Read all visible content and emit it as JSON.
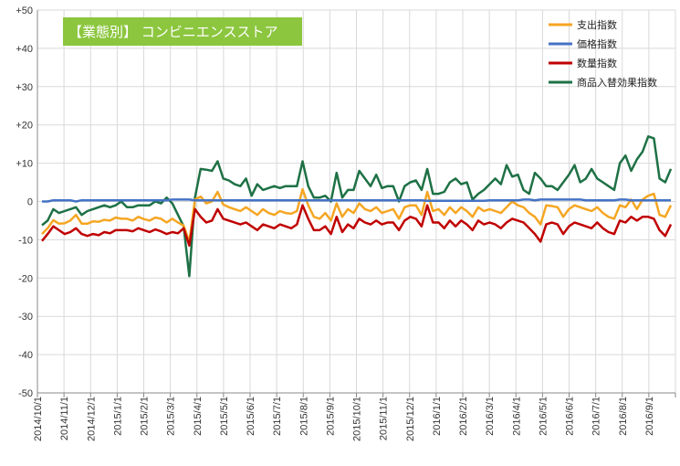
{
  "chart_data": {
    "type": "line",
    "title": "【業態別】 コンビニエンスストア",
    "title_bg_color": "#8CC63F",
    "ylim": [
      -50,
      50
    ],
    "yticks": [
      "+50",
      "+40",
      "+30",
      "+20",
      "+10",
      "0",
      "-10",
      "-20",
      "-30",
      "-40",
      "-50"
    ],
    "xticks": [
      "2014/10/1",
      "2014/11/1",
      "2014/12/1",
      "2015/1/1",
      "2015/2/1",
      "2015/3/1",
      "2015/4/1",
      "2015/5/1",
      "2015/6/1",
      "2015/7/1",
      "2015/8/1",
      "2015/9/1",
      "2015/10/1",
      "2015/11/1",
      "2015/12/1",
      "2016/1/1",
      "2016/2/1",
      "2016/3/1",
      "2016/4/1",
      "2016/5/1",
      "2016/6/1",
      "2016/7/1",
      "2016/8/1",
      "2016/9/1"
    ],
    "grid": true,
    "legend_position": "top-right",
    "series": [
      {
        "name": "支出指数",
        "color": "#F5A623",
        "values": [
          -8.5,
          -7,
          -4.9,
          -5.8,
          -5.7,
          -5,
          -3.5,
          -5.8,
          -5.8,
          -5.2,
          -5.3,
          -4.8,
          -5,
          -4.2,
          -4.5,
          -4.5,
          -5,
          -4,
          -4.6,
          -5,
          -4.2,
          -4.5,
          -5.5,
          -4.5,
          -5.5,
          -6.3,
          -10.5,
          0.5,
          1.3,
          -0.5,
          0,
          2.5,
          -0.8,
          -1.5,
          -2,
          -2.5,
          -1.5,
          -2.5,
          -3.5,
          -2,
          -3,
          -3.5,
          -2.5,
          -3,
          -3.2,
          -2.5,
          3.2,
          -1,
          -4,
          -4.5,
          -3,
          -5,
          -0.5,
          -4,
          -2,
          -3,
          -0.5,
          -2,
          -2.5,
          -1.5,
          -3,
          -2.5,
          -2,
          -4.5,
          -1.5,
          -1,
          -1,
          -3.5,
          2.5,
          -2.5,
          -2,
          -3.5,
          -1.5,
          -3,
          -1.5,
          -2.5,
          -4,
          -1.5,
          -2.5,
          -2,
          -2.5,
          -3,
          -1.5,
          0,
          -1,
          -1.5,
          -3,
          -4,
          -6,
          -1,
          -1.2,
          -1.5,
          -4,
          -2,
          -1,
          -1.5,
          -2,
          -2.5,
          -1.5,
          -3,
          -4,
          -4.5,
          -1,
          -1.5,
          0.5,
          -2,
          0.5,
          1.5,
          2,
          -3.5,
          -4,
          -1
        ]
      },
      {
        "name": "価格指数",
        "color": "#4472C4",
        "values": [
          0,
          0,
          0.3,
          0.3,
          0.3,
          0.3,
          0,
          0.3,
          0.3,
          0.3,
          0.3,
          0.3,
          0.3,
          0.3,
          0.3,
          0.3,
          0.3,
          0.3,
          0.3,
          0.3,
          0.3,
          0.3,
          0.3,
          0.5,
          0.5,
          0.5,
          0.5,
          0.3,
          0.3,
          0.3,
          0.3,
          0.3,
          0.3,
          0.3,
          0.3,
          0.3,
          0.3,
          0.3,
          0.3,
          0.3,
          0.3,
          0.3,
          0.3,
          0.3,
          0.3,
          0.3,
          0.3,
          0.3,
          0.3,
          0.3,
          0.3,
          0.3,
          0.3,
          0.3,
          0.3,
          0.3,
          0.3,
          0.3,
          0.3,
          0.3,
          0.3,
          0.3,
          0.3,
          0.3,
          0.3,
          0.3,
          0.3,
          0.3,
          0.2,
          0.2,
          0.2,
          0.2,
          0.2,
          0.2,
          0.2,
          0.2,
          0.2,
          0.2,
          0.2,
          0.3,
          0.3,
          0.3,
          0.3,
          0.3,
          0.3,
          0.5,
          0.5,
          0.3,
          0.5,
          0.5,
          0.5,
          0.5,
          0.5,
          0.5,
          0.5,
          0.5,
          0.3,
          0.3,
          0.3,
          0.3,
          0.3,
          0.3,
          0.5,
          0.5,
          0.3,
          0.3,
          0.3,
          0.3,
          0.3,
          0.3,
          0.3,
          0.3
        ]
      },
      {
        "name": "数量指数",
        "color": "#C00000",
        "values": [
          -10.3,
          -8.5,
          -6.5,
          -7.5,
          -8.5,
          -8,
          -7,
          -8.5,
          -9,
          -8.5,
          -8.8,
          -8,
          -8.3,
          -7.5,
          -7.5,
          -7.5,
          -7.8,
          -7,
          -7.5,
          -8,
          -7.3,
          -7.8,
          -8.5,
          -8,
          -8.3,
          -7,
          -11.5,
          -2,
          -4,
          -5.5,
          -5,
          -2,
          -4.5,
          -5,
          -5.5,
          -6,
          -5.5,
          -6.5,
          -7.5,
          -6,
          -6.5,
          -7,
          -6,
          -6.5,
          -7,
          -6,
          -1,
          -4.5,
          -7.5,
          -7.5,
          -6.5,
          -8.5,
          -4,
          -8,
          -6,
          -7,
          -4.5,
          -5.5,
          -6,
          -5,
          -6,
          -5.5,
          -5.5,
          -7.5,
          -5,
          -4,
          -4.5,
          -6.5,
          -1,
          -5.5,
          -5.5,
          -7,
          -5,
          -6.5,
          -5,
          -6,
          -7.5,
          -5,
          -6,
          -5.5,
          -6,
          -7,
          -5.5,
          -4.5,
          -5,
          -5.5,
          -7,
          -8.5,
          -10.5,
          -6,
          -5.5,
          -6,
          -8.5,
          -6.5,
          -5.5,
          -6,
          -6.5,
          -7,
          -5.5,
          -7,
          -8,
          -8.5,
          -5,
          -5.5,
          -4,
          -5,
          -4,
          -4,
          -4.5,
          -7.5,
          -9,
          -6
        ]
      },
      {
        "name": "商品入替効果指数",
        "color": "#1E7145",
        "values": [
          -6.2,
          -5,
          -2,
          -3,
          -2.5,
          -2,
          -1.5,
          -3.5,
          -2.5,
          -2,
          -1.5,
          -1,
          -1.5,
          -1,
          0,
          -1.5,
          -1.5,
          -1,
          -1,
          -1,
          0,
          -0.5,
          1,
          -0.5,
          -3.5,
          -6.5,
          -19.5,
          1,
          8.5,
          8.3,
          8,
          10.5,
          6,
          5.5,
          4.5,
          4,
          6,
          1.5,
          4.5,
          3,
          3.5,
          4,
          3.5,
          4,
          4,
          4,
          10.5,
          4,
          1,
          1,
          1.5,
          0,
          7.5,
          1,
          3,
          3,
          8,
          6,
          4,
          7,
          3.5,
          4,
          4,
          0,
          4,
          5,
          5.5,
          3,
          8.5,
          2,
          2,
          2.5,
          5,
          6,
          4.5,
          5,
          0.5,
          2,
          3,
          4.5,
          6,
          4.5,
          9.5,
          6.5,
          7,
          3,
          2,
          7.5,
          6,
          4,
          4,
          3,
          5,
          7,
          9.5,
          5,
          6,
          8.5,
          6,
          5,
          4,
          3,
          10,
          12,
          8,
          11,
          13,
          17,
          16.5,
          6,
          5,
          8.5
        ]
      }
    ]
  }
}
